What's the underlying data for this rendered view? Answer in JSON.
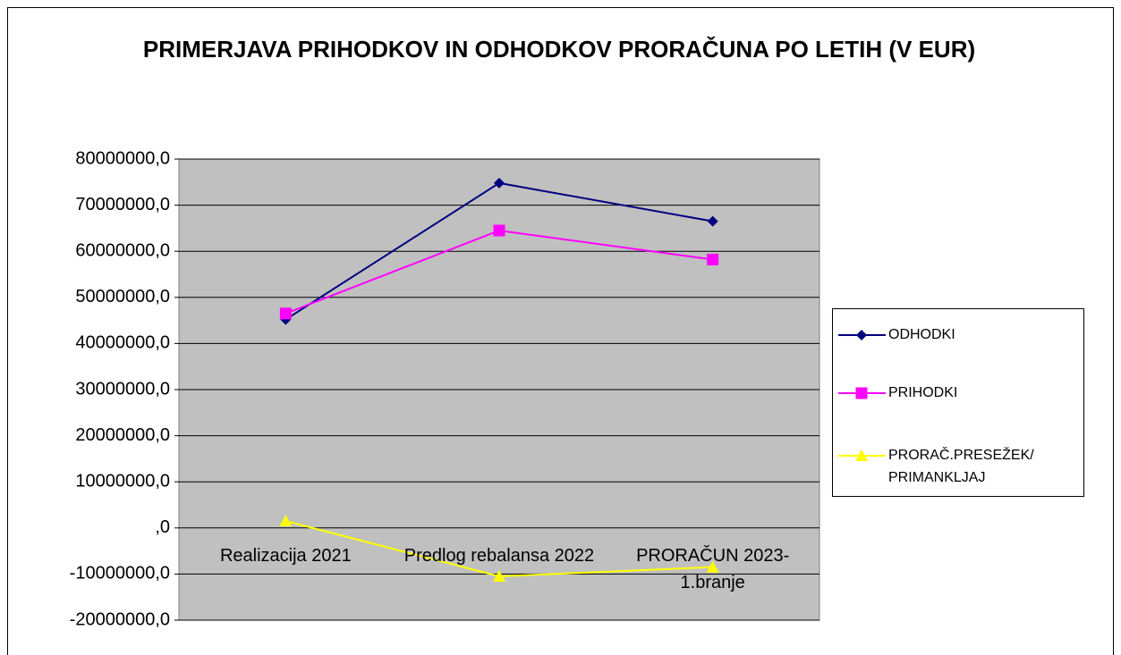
{
  "chart_data": {
    "type": "line",
    "title": "PRIMERJAVA PRIHODKOV IN ODHODKOV PRORAČUNA PO LETIH (V EUR)",
    "categories": [
      "Realizacija 2021",
      "Predlog rebalansa 2022",
      "PRORAČUN 2023-1.branje"
    ],
    "series": [
      {
        "name": "ODHODKI",
        "color": "#000080",
        "marker": "diamond",
        "values": [
          45200000,
          74800000,
          66500000
        ]
      },
      {
        "name": "PRIHODKI",
        "color": "#ff00ff",
        "marker": "square",
        "values": [
          46500000,
          64500000,
          58200000
        ]
      },
      {
        "name": "PRORAČ.PRESEŽEK/ PRIMANKLJAJ",
        "color": "#ffff00",
        "marker": "triangle",
        "values": [
          1500000,
          -10500000,
          -8500000
        ]
      }
    ],
    "ylim": [
      -20000000,
      80000000
    ],
    "yticks": [
      {
        "value": -20000000,
        "label": "-20000000,0"
      },
      {
        "value": -10000000,
        "label": "-10000000,0"
      },
      {
        "value": 0,
        "label": ",0"
      },
      {
        "value": 10000000,
        "label": "10000000,0"
      },
      {
        "value": 20000000,
        "label": "20000000,0"
      },
      {
        "value": 30000000,
        "label": "30000000,0"
      },
      {
        "value": 40000000,
        "label": "40000000,0"
      },
      {
        "value": 50000000,
        "label": "50000000,0"
      },
      {
        "value": 60000000,
        "label": "60000000,0"
      },
      {
        "value": 70000000,
        "label": "70000000,0"
      },
      {
        "value": 80000000,
        "label": "80000000,0"
      }
    ],
    "grid": true,
    "legend": "right"
  }
}
